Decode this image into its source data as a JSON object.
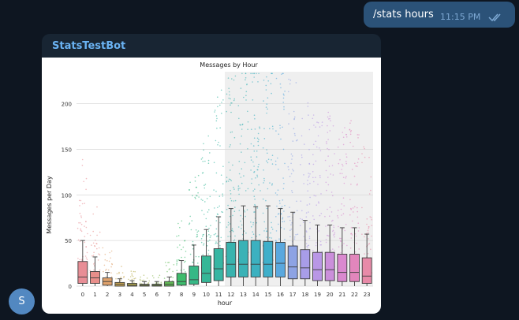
{
  "outgoing": {
    "text": "/stats hours",
    "time": "11:15 PM"
  },
  "incoming": {
    "sender": "StatsTestBot"
  },
  "avatar": {
    "letter": "S"
  },
  "colors": {
    "background": "#0e1621",
    "out_bubble": "#2b5278",
    "in_bubble": "#182533",
    "sender": "#6ab2f2",
    "avatar": "#5288c1"
  },
  "icons": {
    "read_receipt": "double-check-icon"
  },
  "chart_data": {
    "type": "box",
    "title": "Messages by Hour",
    "xlabel": "hour",
    "ylabel": "Messages per Day",
    "ylim": [
      0,
      235
    ],
    "yticks": [
      0,
      50,
      100,
      150,
      200
    ],
    "grid": true,
    "highlight_range": [
      12,
      23
    ],
    "categories": [
      "0",
      "1",
      "2",
      "3",
      "4",
      "5",
      "6",
      "7",
      "8",
      "9",
      "10",
      "11",
      "12",
      "13",
      "14",
      "15",
      "16",
      "17",
      "18",
      "19",
      "20",
      "21",
      "22",
      "23"
    ],
    "boxes": [
      {
        "q1": 3,
        "median": 10,
        "q3": 27,
        "whisker_low": 0,
        "whisker_high": 50
      },
      {
        "q1": 3,
        "median": 9,
        "q3": 16,
        "whisker_low": 0,
        "whisker_high": 32
      },
      {
        "q1": 1,
        "median": 5,
        "q3": 9,
        "whisker_low": 0,
        "whisker_high": 15
      },
      {
        "q1": 0,
        "median": 2,
        "q3": 4,
        "whisker_low": 0,
        "whisker_high": 8
      },
      {
        "q1": 0,
        "median": 1,
        "q3": 3,
        "whisker_low": 0,
        "whisker_high": 6
      },
      {
        "q1": 0,
        "median": 1,
        "q3": 2,
        "whisker_low": 0,
        "whisker_high": 5
      },
      {
        "q1": 0,
        "median": 1,
        "q3": 2,
        "whisker_low": 0,
        "whisker_high": 5
      },
      {
        "q1": 0,
        "median": 2,
        "q3": 5,
        "whisker_low": 0,
        "whisker_high": 10
      },
      {
        "q1": 1,
        "median": 5,
        "q3": 14,
        "whisker_low": 0,
        "whisker_high": 28
      },
      {
        "q1": 2,
        "median": 7,
        "q3": 22,
        "whisker_low": 0,
        "whisker_high": 45
      },
      {
        "q1": 4,
        "median": 14,
        "q3": 33,
        "whisker_low": 0,
        "whisker_high": 62
      },
      {
        "q1": 6,
        "median": 19,
        "q3": 41,
        "whisker_low": 0,
        "whisker_high": 76
      },
      {
        "q1": 10,
        "median": 24,
        "q3": 48,
        "whisker_low": 0,
        "whisker_high": 85
      },
      {
        "q1": 10,
        "median": 24,
        "q3": 50,
        "whisker_low": 0,
        "whisker_high": 88
      },
      {
        "q1": 10,
        "median": 24,
        "q3": 50,
        "whisker_low": 0,
        "whisker_high": 87
      },
      {
        "q1": 10,
        "median": 24,
        "q3": 49,
        "whisker_low": 0,
        "whisker_high": 88
      },
      {
        "q1": 10,
        "median": 25,
        "q3": 48,
        "whisker_low": 0,
        "whisker_high": 85
      },
      {
        "q1": 8,
        "median": 21,
        "q3": 44,
        "whisker_low": 0,
        "whisker_high": 81
      },
      {
        "q1": 8,
        "median": 20,
        "q3": 40,
        "whisker_low": 0,
        "whisker_high": 72
      },
      {
        "q1": 6,
        "median": 18,
        "q3": 37,
        "whisker_low": 0,
        "whisker_high": 67
      },
      {
        "q1": 6,
        "median": 18,
        "q3": 37,
        "whisker_low": 0,
        "whisker_high": 67
      },
      {
        "q1": 5,
        "median": 15,
        "q3": 35,
        "whisker_low": 0,
        "whisker_high": 64
      },
      {
        "q1": 5,
        "median": 15,
        "q3": 35,
        "whisker_low": 0,
        "whisker_high": 64
      },
      {
        "q1": 3,
        "median": 11,
        "q3": 31,
        "whisker_low": 0,
        "whisker_high": 57
      }
    ],
    "colors": [
      "#e88e96",
      "#e88e8a",
      "#dfa26c",
      "#c9a652",
      "#b7ad4c",
      "#a1b34c",
      "#85b84e",
      "#62bb56",
      "#3dbc6c",
      "#36b886",
      "#36b797",
      "#37b6a3",
      "#39b3ae",
      "#3ab2b6",
      "#3cb1c0",
      "#3fafca",
      "#5aa8de",
      "#8da3e4",
      "#a89de8",
      "#b997e6",
      "#cb8fdb",
      "#da89cf",
      "#e286bc",
      "#e88aa8"
    ]
  }
}
